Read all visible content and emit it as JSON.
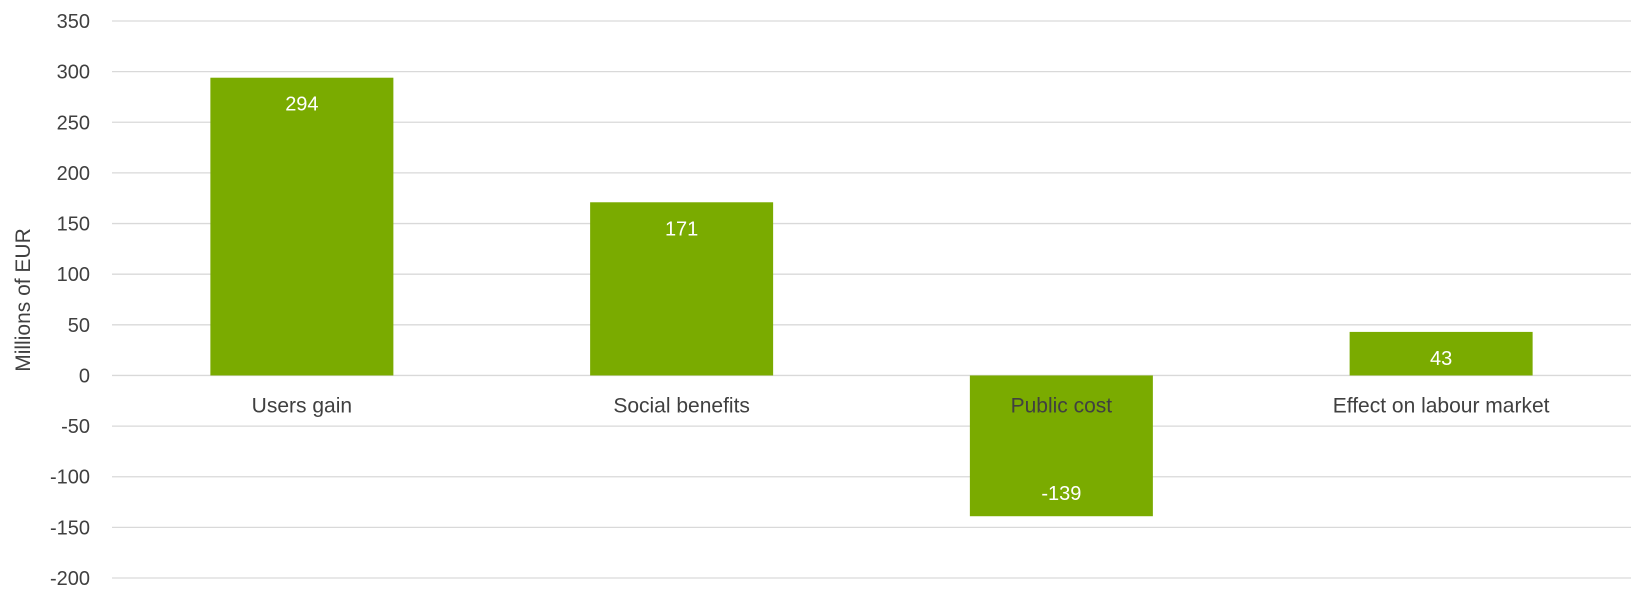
{
  "chart_data": {
    "type": "bar",
    "title": "",
    "xlabel": "",
    "ylabel": "Millions of EUR",
    "ylim": [
      -200,
      350
    ],
    "yticks": [
      350,
      300,
      250,
      200,
      150,
      100,
      50,
      0,
      -50,
      -100,
      -150,
      -200
    ],
    "ytick_labels": [
      "350",
      "300",
      "250",
      "200",
      "150",
      "100",
      "50",
      "0",
      "-50",
      "-100",
      "-150",
      "-200"
    ],
    "grid": true,
    "legend": "none",
    "categories": [
      "Users gain",
      "Social benefits",
      "Public cost",
      "Effect on labour market"
    ],
    "values": [
      294,
      171,
      -139,
      43
    ],
    "data_labels": [
      "294",
      "171",
      "-139",
      "43"
    ],
    "bar_color": "#7aab00",
    "grid_color": "#d9d9d9",
    "text_color": "#404040",
    "data_label_color": "#ffffff"
  }
}
